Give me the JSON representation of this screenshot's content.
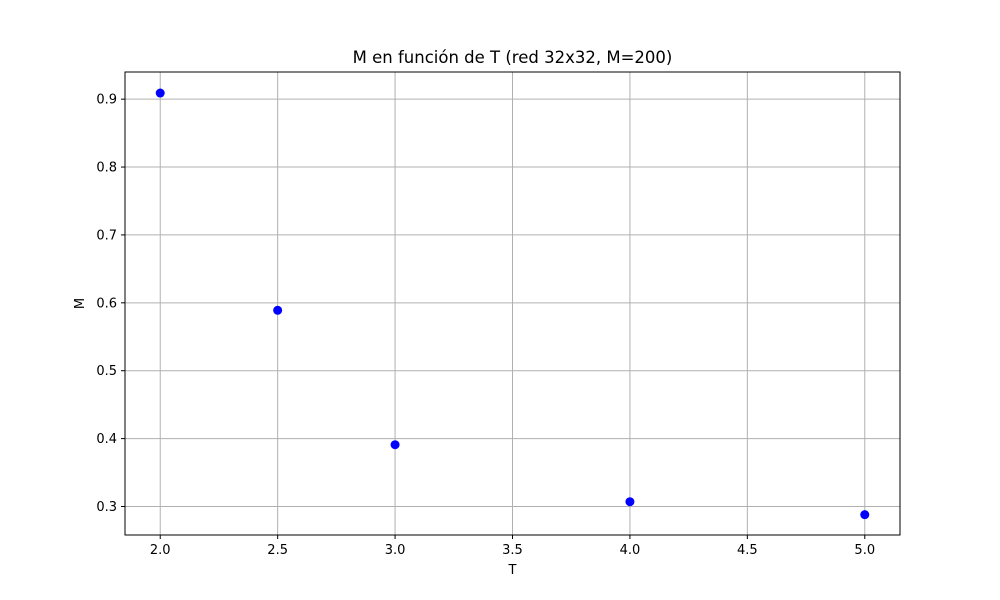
{
  "chart_data": {
    "type": "scatter",
    "title": "M en función de T (red 32x32, M=200)",
    "xlabel": "T",
    "ylabel": "M",
    "xlim": [
      1.85,
      5.15
    ],
    "ylim": [
      0.258,
      0.94
    ],
    "x_ticks": [
      2.0,
      2.5,
      3.0,
      3.5,
      4.0,
      4.5,
      5.0
    ],
    "x_tick_labels": [
      "2.0",
      "2.5",
      "3.0",
      "3.5",
      "4.0",
      "4.5",
      "5.0"
    ],
    "y_ticks": [
      0.3,
      0.4,
      0.5,
      0.6,
      0.7,
      0.8,
      0.9
    ],
    "y_tick_labels": [
      "0.3",
      "0.4",
      "0.5",
      "0.6",
      "0.7",
      "0.8",
      "0.9"
    ],
    "grid": true,
    "marker_color": "#0000ff",
    "series": [
      {
        "x": [
          2.0,
          2.5,
          3.0,
          4.0,
          5.0
        ],
        "y": [
          0.909,
          0.589,
          0.391,
          0.307,
          0.288
        ]
      }
    ]
  }
}
